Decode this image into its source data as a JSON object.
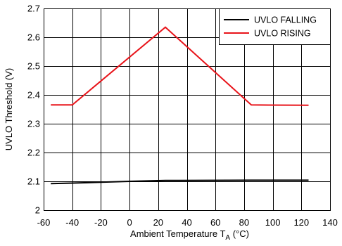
{
  "chart_data": {
    "type": "line",
    "title": "",
    "xlabel_main": "Ambient Temperature T",
    "xlabel_sub": "A",
    "xlabel_unit": " (°C)",
    "ylabel": "UVLO Threshold (V)",
    "xlim": [
      -60,
      140
    ],
    "ylim": [
      2.0,
      2.7
    ],
    "x_ticks": [
      -60,
      -40,
      -20,
      0,
      20,
      40,
      60,
      80,
      100,
      120,
      140
    ],
    "x_tick_labels": [
      "-60",
      "-40",
      "-20",
      "0",
      "20",
      "40",
      "60",
      "80",
      "100",
      "120",
      "140"
    ],
    "y_ticks": [
      2.0,
      2.1,
      2.2,
      2.3,
      2.4,
      2.5,
      2.6,
      2.7
    ],
    "y_tick_labels": [
      "2",
      "2.1",
      "2.2",
      "2.3",
      "2.4",
      "2.5",
      "2.6",
      "2.7"
    ],
    "grid": true,
    "legend_position": "top-right",
    "series": [
      {
        "name": "UVLO FALLING",
        "color": "#000000",
        "x": [
          -55,
          -40,
          0,
          25,
          85,
          125
        ],
        "y": [
          2.092,
          2.094,
          2.1,
          2.103,
          2.104,
          2.104
        ]
      },
      {
        "name": "UVLO RISING",
        "color": "#e8141a",
        "x": [
          -55,
          -40,
          25,
          85,
          125
        ],
        "y": [
          2.365,
          2.365,
          2.635,
          2.365,
          2.364
        ]
      }
    ]
  }
}
